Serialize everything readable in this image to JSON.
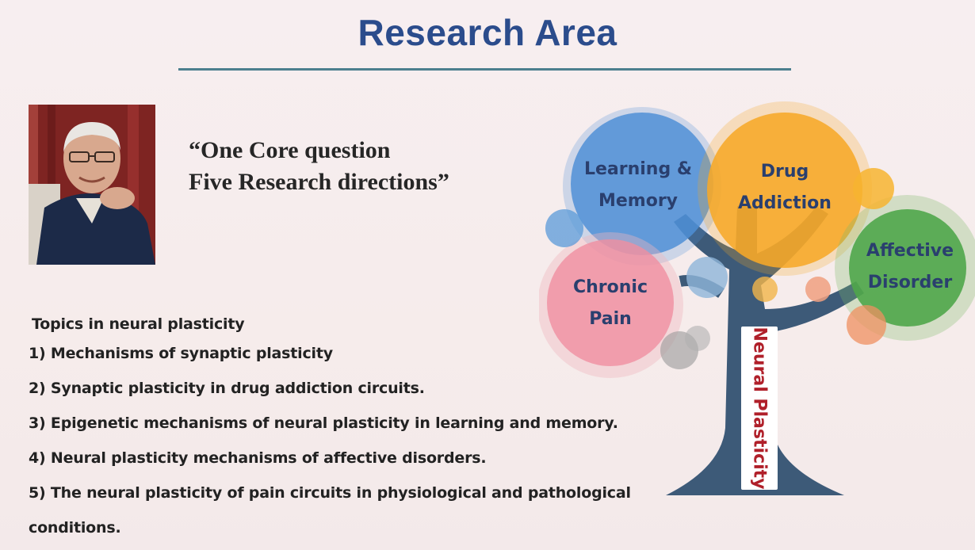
{
  "slide": {
    "title": "Research Area",
    "quote_line1": "“One Core question",
    "quote_line2": "Five Research directions”"
  },
  "topics": {
    "heading": "Topics in neural plasticity",
    "items": [
      "1) Mechanisms of synaptic plasticity",
      "2) Synaptic plasticity in drug addiction circuits.",
      "3) Epigenetic mechanisms of neural plasticity in learning and memory.",
      "4) Neural plasticity mechanisms of affective disorders.",
      "5) The neural plasticity of pain circuits in physiological and pathological"
    ],
    "item5_continuation": "conditions."
  },
  "tree": {
    "trunk_label": "Neural Plasticity",
    "bubbles": {
      "learning_line1": "Learning &",
      "learning_line2": "Memory",
      "drug_line1": "Drug",
      "drug_line2": "Addiction",
      "affective_line1": "Affective",
      "affective_line2": "Disorder",
      "pain_line1": "Chronic",
      "pain_line2": "Pain"
    }
  },
  "colors": {
    "title": "#2b4c8c",
    "rule": "#4c7f8e",
    "learning_bubble": "#4f8fd6",
    "drug_bubble": "#f5a623",
    "affective_bubble": "#4fa64a",
    "pain_bubble": "#f08ea0",
    "trunk": "#3d5a78",
    "trunk_label_text": "#b0202a"
  }
}
